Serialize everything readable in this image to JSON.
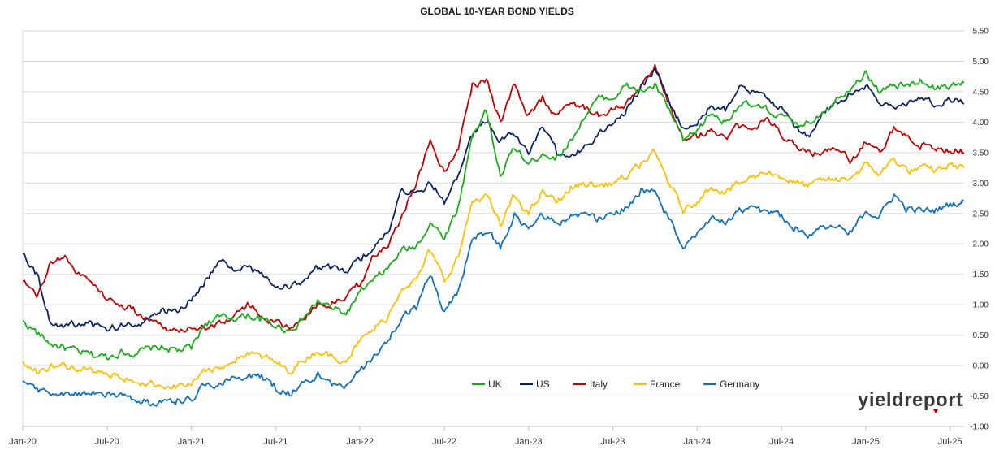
{
  "chart_data": {
    "type": "line",
    "title": "GLOBAL 10-YEAR BOND YIELDS",
    "xlabel": "",
    "ylabel": "",
    "x_start": "2020-01",
    "x_end": "2025-08",
    "ylim": [
      -1.0,
      5.5
    ],
    "y_ticks": [
      "5.50",
      "5.00",
      "4.50",
      "4.00",
      "3.50",
      "3.00",
      "2.50",
      "2.00",
      "1.50",
      "1.00",
      "0.50",
      "0.00",
      "-0.50",
      "-1.00"
    ],
    "x_ticks": [
      "Jan-20",
      "Jul-20",
      "Jan-21",
      "Jul-21",
      "Jan-22",
      "Jul-22",
      "Jan-23",
      "Jul-23",
      "Jan-24",
      "Jul-24",
      "Jan-25",
      "Jul-25"
    ],
    "grid": true,
    "legend_position": "bottom-right-inside",
    "x": [
      "2020-01",
      "2020-02",
      "2020-03",
      "2020-04",
      "2020-05",
      "2020-06",
      "2020-07",
      "2020-08",
      "2020-09",
      "2020-10",
      "2020-11",
      "2020-12",
      "2021-01",
      "2021-02",
      "2021-03",
      "2021-04",
      "2021-05",
      "2021-06",
      "2021-07",
      "2021-08",
      "2021-09",
      "2021-10",
      "2021-11",
      "2021-12",
      "2022-01",
      "2022-02",
      "2022-03",
      "2022-04",
      "2022-05",
      "2022-06",
      "2022-07",
      "2022-08",
      "2022-09",
      "2022-10",
      "2022-11",
      "2022-12",
      "2023-01",
      "2023-02",
      "2023-03",
      "2023-04",
      "2023-05",
      "2023-06",
      "2023-07",
      "2023-08",
      "2023-09",
      "2023-10",
      "2023-11",
      "2023-12",
      "2024-01",
      "2024-02",
      "2024-03",
      "2024-04",
      "2024-05",
      "2024-06",
      "2024-07",
      "2024-08",
      "2024-09",
      "2024-10",
      "2024-11",
      "2024-12",
      "2025-01",
      "2025-02",
      "2025-03",
      "2025-04",
      "2025-05",
      "2025-06",
      "2025-07",
      "2025-08"
    ],
    "series": [
      {
        "name": "UK",
        "color": "#1aab1a",
        "values": [
          0.72,
          0.55,
          0.35,
          0.3,
          0.22,
          0.18,
          0.15,
          0.22,
          0.2,
          0.28,
          0.3,
          0.25,
          0.3,
          0.7,
          0.8,
          0.78,
          0.82,
          0.75,
          0.65,
          0.58,
          0.78,
          1.05,
          0.95,
          0.85,
          1.2,
          1.4,
          1.6,
          1.9,
          1.95,
          2.35,
          2.1,
          2.6,
          3.8,
          4.2,
          3.1,
          3.6,
          3.3,
          3.5,
          3.4,
          3.7,
          4.1,
          4.4,
          4.4,
          4.6,
          4.5,
          4.6,
          4.2,
          3.7,
          3.85,
          4.15,
          4.0,
          4.3,
          4.25,
          4.2,
          4.1,
          3.95,
          4.0,
          4.2,
          4.4,
          4.6,
          4.8,
          4.5,
          4.6,
          4.6,
          4.7,
          4.55,
          4.6,
          4.65
        ]
      },
      {
        "name": "US",
        "color": "#0b2266",
        "values": [
          1.88,
          1.5,
          0.7,
          0.65,
          0.68,
          0.68,
          0.6,
          0.65,
          0.68,
          0.78,
          0.9,
          0.92,
          1.08,
          1.4,
          1.7,
          1.6,
          1.6,
          1.5,
          1.3,
          1.3,
          1.4,
          1.6,
          1.6,
          1.5,
          1.78,
          1.95,
          2.2,
          2.9,
          2.85,
          3.0,
          2.7,
          3.1,
          3.8,
          4.0,
          3.7,
          3.8,
          3.5,
          3.9,
          3.5,
          3.45,
          3.6,
          3.8,
          3.95,
          4.2,
          4.55,
          4.85,
          4.35,
          3.9,
          4.0,
          4.25,
          4.2,
          4.6,
          4.5,
          4.35,
          4.25,
          3.9,
          3.75,
          4.2,
          4.3,
          4.5,
          4.6,
          4.3,
          4.25,
          4.3,
          4.4,
          4.3,
          4.4,
          4.3
        ]
      },
      {
        "name": "Italy",
        "color": "#c40000",
        "values": [
          1.4,
          1.1,
          1.7,
          1.8,
          1.5,
          1.35,
          1.1,
          1.0,
          0.9,
          0.75,
          0.65,
          0.55,
          0.65,
          0.62,
          0.7,
          0.8,
          1.0,
          0.85,
          0.7,
          0.58,
          0.8,
          1.0,
          1.0,
          1.15,
          1.35,
          1.8,
          1.95,
          2.5,
          3.0,
          3.7,
          3.2,
          3.6,
          4.6,
          4.7,
          4.0,
          4.6,
          4.1,
          4.4,
          4.1,
          4.3,
          4.25,
          4.1,
          4.2,
          4.3,
          4.6,
          4.9,
          4.3,
          3.7,
          3.75,
          3.9,
          3.7,
          3.95,
          3.9,
          4.05,
          3.8,
          3.65,
          3.5,
          3.5,
          3.55,
          3.35,
          3.7,
          3.55,
          3.9,
          3.75,
          3.6,
          3.55,
          3.55,
          3.5
        ]
      },
      {
        "name": "France",
        "color": "#ffbe00",
        "values": [
          0.05,
          -0.1,
          0.0,
          0.0,
          -0.05,
          -0.1,
          -0.15,
          -0.2,
          -0.25,
          -0.3,
          -0.32,
          -0.35,
          -0.3,
          -0.1,
          -0.05,
          0.1,
          0.2,
          0.15,
          0.05,
          -0.1,
          0.1,
          0.25,
          0.15,
          0.1,
          0.4,
          0.6,
          0.8,
          1.3,
          1.4,
          1.9,
          1.4,
          1.8,
          2.7,
          2.8,
          2.3,
          2.8,
          2.5,
          2.85,
          2.7,
          2.9,
          3.0,
          2.95,
          3.0,
          3.1,
          3.3,
          3.5,
          3.0,
          2.55,
          2.7,
          2.95,
          2.85,
          3.0,
          3.1,
          3.2,
          3.1,
          3.0,
          2.95,
          3.05,
          3.05,
          3.1,
          3.3,
          3.15,
          3.4,
          3.2,
          3.25,
          3.2,
          3.3,
          3.25
        ]
      },
      {
        "name": "Germany",
        "color": "#1070bb",
        "values": [
          -0.2,
          -0.4,
          -0.45,
          -0.5,
          -0.45,
          -0.45,
          -0.5,
          -0.48,
          -0.55,
          -0.6,
          -0.58,
          -0.58,
          -0.55,
          -0.3,
          -0.3,
          -0.2,
          -0.15,
          -0.2,
          -0.35,
          -0.45,
          -0.3,
          -0.15,
          -0.3,
          -0.35,
          -0.1,
          0.15,
          0.4,
          0.8,
          0.95,
          1.5,
          0.9,
          1.2,
          2.1,
          2.2,
          1.95,
          2.5,
          2.2,
          2.5,
          2.3,
          2.45,
          2.5,
          2.4,
          2.5,
          2.6,
          2.85,
          2.85,
          2.4,
          1.95,
          2.2,
          2.4,
          2.35,
          2.55,
          2.6,
          2.5,
          2.45,
          2.25,
          2.15,
          2.3,
          2.25,
          2.2,
          2.55,
          2.45,
          2.8,
          2.55,
          2.55,
          2.55,
          2.65,
          2.7
        ]
      }
    ]
  },
  "logo": {
    "text": "yieldreport"
  }
}
